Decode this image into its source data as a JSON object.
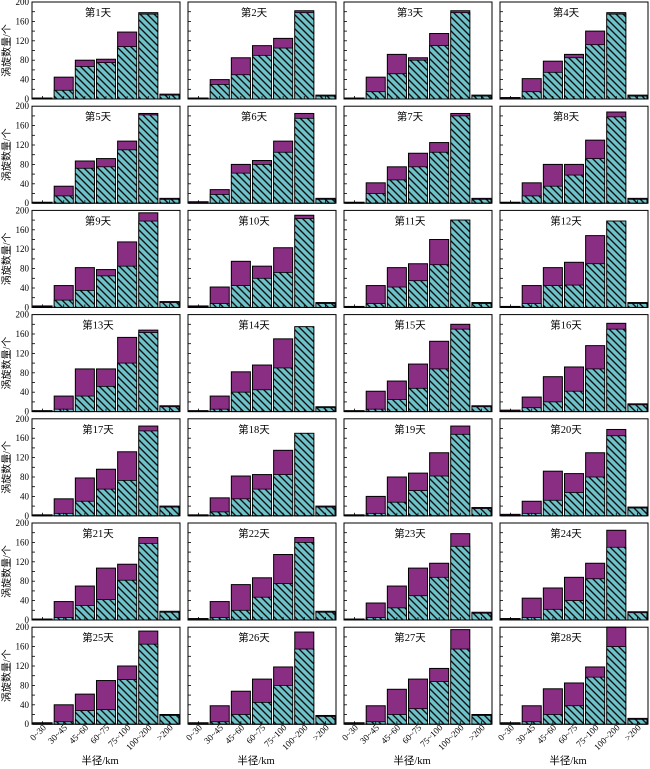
{
  "chart_data": {
    "type": "bar",
    "layout": "7 rows x 4 columns of small-multiple stacked bar charts",
    "ylabel": "涡旋数量/个",
    "xlabel": "半径/km",
    "categories": [
      "0~30",
      "30~45",
      "45~60",
      "60~75",
      "75~100",
      "100~200",
      ">200"
    ],
    "ylim": [
      0,
      200
    ],
    "yticks": [
      0,
      20,
      40,
      60,
      80,
      100,
      120,
      140,
      160,
      180,
      200
    ],
    "colors": {
      "purple": "#8a2e84",
      "cyan": "#6ec3cb",
      "hatch": "#111111",
      "frame": "#000000"
    },
    "series_style": [
      "purple = total bar height (outer segment)",
      "cyan with diagonal black hatching = lower segment"
    ],
    "panels": [
      {
        "title": "第1天",
        "total": [
          2,
          45,
          80,
          82,
          138,
          178,
          10
        ],
        "cyan": [
          1,
          18,
          67,
          75,
          108,
          175,
          8
        ]
      },
      {
        "title": "第2天",
        "total": [
          2,
          40,
          85,
          110,
          125,
          182,
          8
        ],
        "cyan": [
          1,
          30,
          50,
          90,
          105,
          178,
          6
        ]
      },
      {
        "title": "第3天",
        "total": [
          2,
          45,
          92,
          85,
          135,
          182,
          8
        ],
        "cyan": [
          1,
          15,
          52,
          80,
          110,
          178,
          6
        ]
      },
      {
        "title": "第4天",
        "total": [
          3,
          42,
          78,
          92,
          140,
          178,
          8
        ],
        "cyan": [
          1,
          15,
          55,
          85,
          112,
          175,
          6
        ]
      },
      {
        "title": "第5天",
        "total": [
          2,
          35,
          87,
          92,
          128,
          185,
          10
        ],
        "cyan": [
          1,
          15,
          72,
          75,
          110,
          182,
          8
        ]
      },
      {
        "title": "第6天",
        "total": [
          3,
          28,
          80,
          88,
          128,
          185,
          10
        ],
        "cyan": [
          1,
          18,
          62,
          80,
          105,
          175,
          8
        ]
      },
      {
        "title": "第7天",
        "total": [
          2,
          42,
          75,
          103,
          125,
          185,
          10
        ],
        "cyan": [
          1,
          20,
          48,
          75,
          105,
          180,
          8
        ]
      },
      {
        "title": "第8天",
        "total": [
          2,
          42,
          80,
          80,
          130,
          188,
          10
        ],
        "cyan": [
          1,
          15,
          35,
          58,
          92,
          178,
          8
        ]
      },
      {
        "title": "第9天",
        "total": [
          3,
          45,
          82,
          78,
          135,
          195,
          12
        ],
        "cyan": [
          1,
          15,
          35,
          65,
          85,
          178,
          10
        ]
      },
      {
        "title": "第10天",
        "total": [
          3,
          42,
          95,
          85,
          123,
          190,
          10
        ],
        "cyan": [
          1,
          8,
          45,
          60,
          72,
          183,
          8
        ]
      },
      {
        "title": "第11天",
        "total": [
          2,
          45,
          82,
          90,
          140,
          180,
          10
        ],
        "cyan": [
          1,
          8,
          42,
          55,
          88,
          180,
          8
        ]
      },
      {
        "title": "第12天",
        "total": [
          2,
          45,
          82,
          93,
          148,
          178,
          10
        ],
        "cyan": [
          1,
          8,
          45,
          46,
          90,
          178,
          8
        ]
      },
      {
        "title": "第13天",
        "total": [
          2,
          32,
          88,
          88,
          153,
          168,
          12
        ],
        "cyan": [
          1,
          5,
          32,
          52,
          100,
          163,
          10
        ]
      },
      {
        "title": "第14天",
        "total": [
          2,
          32,
          82,
          96,
          150,
          175,
          10
        ],
        "cyan": [
          1,
          5,
          40,
          45,
          90,
          175,
          8
        ]
      },
      {
        "title": "第15天",
        "total": [
          2,
          42,
          63,
          98,
          145,
          180,
          12
        ],
        "cyan": [
          1,
          5,
          25,
          48,
          88,
          170,
          10
        ]
      },
      {
        "title": "第16天",
        "total": [
          3,
          30,
          72,
          92,
          136,
          182,
          16
        ],
        "cyan": [
          1,
          8,
          20,
          42,
          88,
          170,
          14
        ]
      },
      {
        "title": "第17天",
        "total": [
          2,
          35,
          78,
          96,
          132,
          185,
          20
        ],
        "cyan": [
          1,
          5,
          30,
          55,
          73,
          175,
          18
        ]
      },
      {
        "title": "第18天",
        "total": [
          2,
          37,
          82,
          85,
          135,
          170,
          20
        ],
        "cyan": [
          1,
          8,
          35,
          55,
          85,
          170,
          18
        ]
      },
      {
        "title": "第19天",
        "total": [
          2,
          40,
          80,
          88,
          130,
          185,
          17
        ],
        "cyan": [
          1,
          5,
          28,
          52,
          82,
          168,
          15
        ]
      },
      {
        "title": "第20天",
        "total": [
          3,
          30,
          92,
          87,
          130,
          178,
          18
        ],
        "cyan": [
          1,
          5,
          32,
          48,
          80,
          165,
          16
        ]
      },
      {
        "title": "第21天",
        "total": [
          2,
          38,
          70,
          107,
          115,
          170,
          18
        ],
        "cyan": [
          1,
          5,
          30,
          42,
          82,
          158,
          16
        ]
      },
      {
        "title": "第22天",
        "total": [
          3,
          38,
          73,
          87,
          135,
          170,
          18
        ],
        "cyan": [
          1,
          5,
          20,
          47,
          75,
          160,
          16
        ]
      },
      {
        "title": "第23天",
        "total": [
          2,
          35,
          70,
          107,
          117,
          178,
          16
        ],
        "cyan": [
          1,
          5,
          25,
          50,
          88,
          152,
          14
        ]
      },
      {
        "title": "第24天",
        "total": [
          3,
          45,
          66,
          88,
          117,
          185,
          17
        ],
        "cyan": [
          1,
          5,
          22,
          40,
          85,
          150,
          15
        ]
      },
      {
        "title": "第25天",
        "total": [
          3,
          40,
          62,
          90,
          120,
          192,
          20
        ],
        "cyan": [
          1,
          5,
          28,
          30,
          92,
          165,
          18
        ]
      },
      {
        "title": "第26天",
        "total": [
          3,
          38,
          68,
          93,
          118,
          190,
          18
        ],
        "cyan": [
          1,
          5,
          20,
          45,
          80,
          155,
          16
        ]
      },
      {
        "title": "第27天",
        "total": [
          3,
          38,
          72,
          93,
          115,
          195,
          20
        ],
        "cyan": [
          1,
          5,
          20,
          32,
          88,
          155,
          18
        ]
      },
      {
        "title": "第28天",
        "total": [
          3,
          38,
          73,
          85,
          118,
          200,
          12
        ],
        "cyan": [
          1,
          5,
          20,
          38,
          97,
          160,
          10
        ]
      }
    ]
  }
}
